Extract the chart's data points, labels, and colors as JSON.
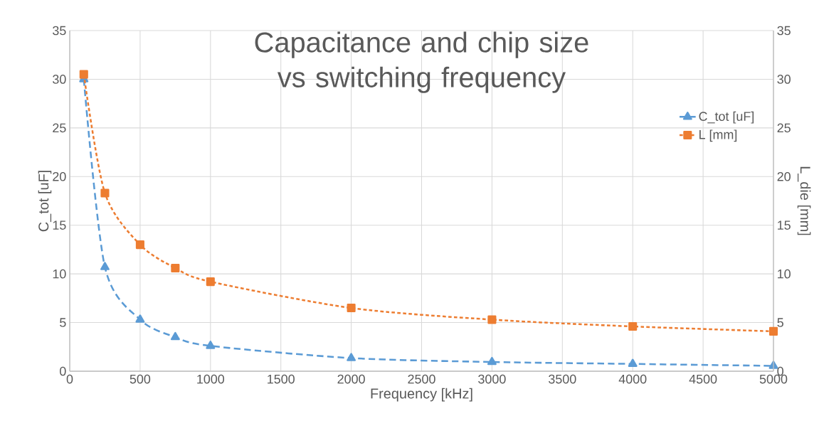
{
  "chart_data": {
    "type": "line",
    "title": "Capacitance and chip size vs switching frequency",
    "xlabel": "Frequency [kHz]",
    "ylabel": "C_tot [uF]",
    "y2label": "L_die [mm]",
    "x": [
      100,
      250,
      500,
      750,
      1000,
      2000,
      3000,
      4000,
      5000
    ],
    "series": [
      {
        "name": "C_tot [uF]",
        "color": "#5b9bd5",
        "marker": "triangle",
        "line_style": "dashed",
        "values": [
          30,
          10.7,
          5.3,
          3.5,
          2.6,
          1.35,
          0.95,
          0.75,
          0.55
        ]
      },
      {
        "name": "L [mm]",
        "color": "#ed7d31",
        "marker": "square",
        "line_style": "dotted",
        "axis": "y2",
        "values": [
          30.5,
          18.3,
          13,
          10.6,
          9.2,
          6.5,
          5.3,
          4.6,
          4.1
        ]
      }
    ],
    "xlim": [
      0,
      5000
    ],
    "xticks": [
      0,
      500,
      1000,
      1500,
      2000,
      2500,
      3000,
      3500,
      4000,
      4500,
      5000
    ],
    "ylim": [
      0,
      35
    ],
    "yticks": [
      0,
      5,
      10,
      15,
      20,
      25,
      30,
      35
    ],
    "y2lim": [
      0,
      35
    ],
    "y2ticks": [
      0,
      5,
      10,
      15,
      20,
      25,
      30,
      35
    ],
    "grid": true,
    "legend": "right"
  }
}
